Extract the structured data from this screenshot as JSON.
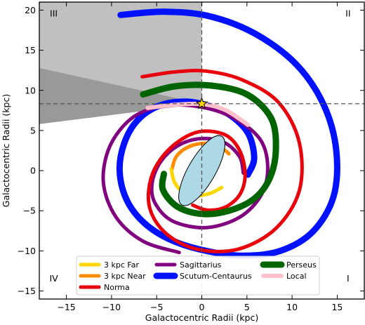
{
  "chart_data": {
    "type": "line",
    "xlabel": "Galactocentric Radii (kpc)",
    "ylabel": "Galactocentric Radii (kpc)",
    "xlim": [
      -18,
      18
    ],
    "ylim": [
      -16,
      21
    ],
    "xticks": [
      -15,
      -10,
      -5,
      0,
      5,
      10,
      15
    ],
    "yticks": [
      -15,
      -10,
      -5,
      0,
      5,
      10,
      15,
      20
    ],
    "grid": false,
    "legend_position": "bottom-center",
    "quadrant_labels": [
      {
        "text": "III",
        "x": -16.4,
        "y": 19.5
      },
      {
        "text": "II",
        "x": 16.2,
        "y": 19.5
      },
      {
        "text": "IV",
        "x": -16.4,
        "y": -13.5
      },
      {
        "text": "I",
        "x": 16.2,
        "y": -13.5
      }
    ],
    "sun": {
      "x": 0.0,
      "y": 8.34,
      "color": "#ffd700"
    },
    "reference_lines": {
      "x": 0,
      "y": 8.34,
      "color": "#555555"
    },
    "shaded_regions": [
      {
        "name": "light-wedge",
        "color": "#c0c0c0",
        "points": [
          [
            -18,
            21
          ],
          [
            0,
            21
          ],
          [
            0,
            8.34
          ],
          [
            -18,
            12.8
          ]
        ]
      },
      {
        "name": "dark-wedge",
        "color": "#999999",
        "points": [
          [
            -18,
            12.8
          ],
          [
            0,
            8.34
          ],
          [
            -18,
            5.8
          ]
        ]
      }
    ],
    "bar": {
      "center": [
        0,
        0
      ],
      "semi_major": 4.4,
      "semi_minor": 1.5,
      "angle_deg": 60,
      "color": "#add8e6"
    },
    "series": [
      {
        "name": "3 kpc Far",
        "color": "#ffd700",
        "width": 5,
        "points": [
          [
            -3.4,
            0.2
          ],
          [
            -3.0,
            -1.5
          ],
          [
            -2.0,
            -2.7
          ],
          [
            -0.5,
            -3.1
          ],
          [
            1.0,
            -2.8
          ],
          [
            2.2,
            -2.1
          ]
        ]
      },
      {
        "name": "3 kpc Near",
        "color": "#ff8c00",
        "width": 5,
        "points": [
          [
            -3.3,
            0.2
          ],
          [
            -2.8,
            1.8
          ],
          [
            -1.4,
            3.0
          ],
          [
            0.5,
            3.4
          ],
          [
            2.2,
            2.8
          ],
          [
            3.0,
            2.1
          ]
        ]
      },
      {
        "name": "Norma",
        "color": "#e8000b",
        "width": 5,
        "points": [
          [
            -6.6,
            11.7
          ],
          [
            -3.0,
            12.3
          ],
          [
            0.5,
            12.4
          ],
          [
            4.5,
            11.3
          ],
          [
            8.5,
            8.5
          ],
          [
            10.8,
            3.5
          ],
          [
            10.8,
            -2.5
          ],
          [
            8.2,
            -7.2
          ],
          [
            4.0,
            -9.8
          ],
          [
            -0.5,
            -9.8
          ],
          [
            -4.0,
            -7.8
          ],
          [
            -5.8,
            -4.5
          ],
          [
            -5.5,
            -0.5
          ],
          [
            -3.5,
            2.8
          ],
          [
            -0.5,
            4.8
          ],
          [
            2.5,
            4.5
          ],
          [
            4.2,
            2.5
          ],
          [
            4.8,
            -0.5
          ],
          [
            4.2,
            -3.0
          ],
          [
            2.5,
            -4.6
          ],
          [
            0.5,
            -4.9
          ],
          [
            -1.0,
            -4.3
          ]
        ]
      },
      {
        "name": "Sagittarius",
        "color": "#800080",
        "width": 5,
        "points": [
          [
            -2.5,
            -10.2
          ],
          [
            -6.5,
            -8.8
          ],
          [
            -9.5,
            -5.8
          ],
          [
            -10.9,
            -1.5
          ],
          [
            -10.2,
            3.0
          ],
          [
            -7.8,
            6.5
          ],
          [
            -4.5,
            8.0
          ],
          [
            -0.5,
            8.0
          ],
          [
            3.3,
            6.7
          ],
          [
            6.4,
            4.0
          ],
          [
            7.3,
            0.5
          ],
          [
            6.6,
            -3.0
          ],
          [
            4.2,
            -5.8
          ],
          [
            0.5,
            -7.1
          ],
          [
            -3.2,
            -6.3
          ],
          [
            -5.2,
            -4.0
          ],
          [
            -5.5,
            -1.5
          ],
          [
            -4.5,
            1.2
          ],
          [
            -2.5,
            3.2
          ],
          [
            0.0,
            4.0
          ],
          [
            2.5,
            3.5
          ],
          [
            4.2,
            1.7
          ],
          [
            4.6,
            -0.3
          ]
        ]
      },
      {
        "name": "Scutum-Centaurus",
        "color": "#0011ff",
        "width": 9,
        "points": [
          [
            -9.0,
            19.4
          ],
          [
            -4.0,
            19.8
          ],
          [
            1.0,
            19.2
          ],
          [
            6.0,
            17.0
          ],
          [
            10.5,
            13.2
          ],
          [
            13.5,
            8.2
          ],
          [
            14.9,
            2.5
          ],
          [
            14.6,
            -3.2
          ],
          [
            12.3,
            -7.6
          ],
          [
            8.7,
            -10.0
          ],
          [
            4.5,
            -10.6
          ],
          [
            0.5,
            -10.0
          ],
          [
            -3.3,
            -8.7
          ],
          [
            -6.3,
            -6.6
          ],
          [
            -8.3,
            -3.7
          ],
          [
            -9.1,
            -0.1
          ],
          [
            -8.6,
            3.4
          ],
          [
            -7.1,
            6.3
          ],
          [
            -4.7,
            8.1
          ],
          [
            -1.8,
            8.6
          ],
          [
            1.0,
            8.0
          ],
          [
            3.4,
            6.7
          ],
          [
            5.2,
            4.5
          ],
          [
            5.8,
            1.5
          ],
          [
            5.1,
            -0.5
          ]
        ]
      },
      {
        "name": "Perseus",
        "color": "#006400",
        "width": 9,
        "points": [
          [
            -6.5,
            9.5
          ],
          [
            -3.0,
            10.5
          ],
          [
            1.0,
            10.6
          ],
          [
            5.0,
            9.5
          ],
          [
            7.7,
            6.5
          ],
          [
            8.2,
            2.5
          ],
          [
            7.5,
            -1.0
          ],
          [
            5.8,
            -3.5
          ],
          [
            3.0,
            -5.0
          ],
          [
            0.0,
            -5.4
          ],
          [
            -2.7,
            -4.5
          ],
          [
            -4.3,
            -2.4
          ],
          [
            -4.2,
            -0.4
          ]
        ]
      },
      {
        "name": "Local",
        "color": "#ffc0cb",
        "width": 6,
        "points": [
          [
            -6.0,
            7.8
          ],
          [
            -3.0,
            8.2
          ],
          [
            0.0,
            8.3
          ],
          [
            2.5,
            7.6
          ],
          [
            4.5,
            6.2
          ],
          [
            5.1,
            5.7
          ]
        ]
      }
    ]
  }
}
